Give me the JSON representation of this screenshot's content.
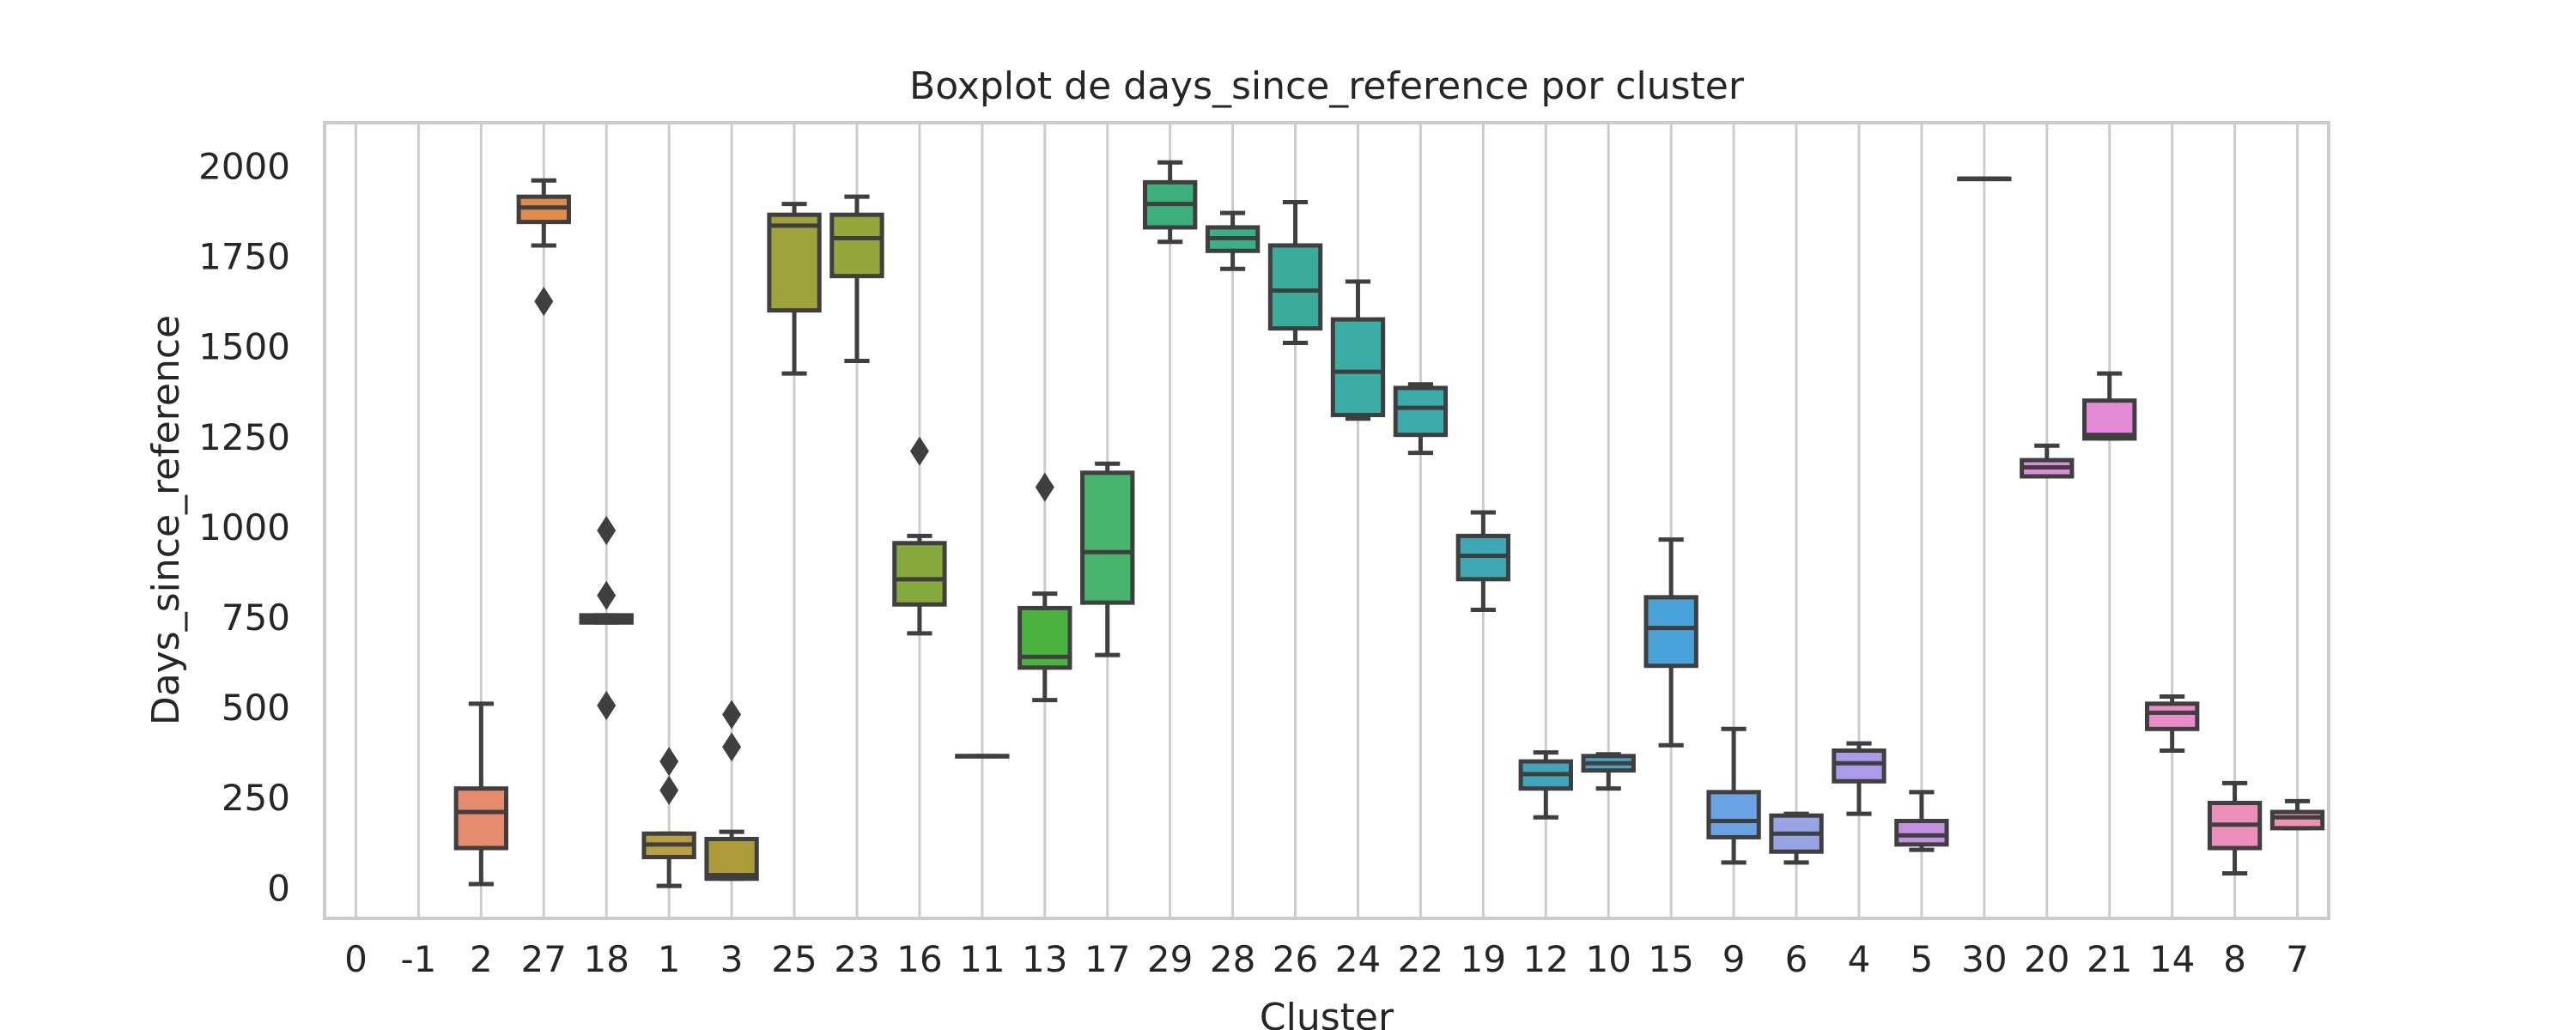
{
  "chart_data": {
    "type": "box",
    "title": "Boxplot de days_since_reference por cluster",
    "xlabel": "Cluster",
    "ylabel": "Days_since_reference",
    "ylim": [
      -85,
      2120
    ],
    "yticks": [
      0,
      250,
      500,
      750,
      1000,
      1250,
      1500,
      1750,
      2000
    ],
    "grid": "vertical",
    "categories": [
      "0",
      "-1",
      "2",
      "27",
      "18",
      "1",
      "3",
      "25",
      "23",
      "16",
      "11",
      "13",
      "17",
      "29",
      "28",
      "26",
      "24",
      "22",
      "19",
      "12",
      "10",
      "15",
      "9",
      "6",
      "4",
      "5",
      "30",
      "20",
      "21",
      "14",
      "8",
      "7"
    ],
    "boxes": [
      null,
      null,
      {
        "min": 10,
        "q1": 110,
        "median": 210,
        "q3": 275,
        "max": 510,
        "outliers": [],
        "color": "#e48c6d"
      },
      {
        "min": 1780,
        "q1": 1845,
        "median": 1885,
        "q3": 1915,
        "max": 1960,
        "outliers": [
          1625
        ],
        "color": "#e18c4c"
      },
      {
        "min": 735,
        "q1": 735,
        "median": 745,
        "q3": 755,
        "max": 755,
        "outliers": [
          990,
          810,
          505
        ],
        "color": "#c79a4f"
      },
      {
        "min": 5,
        "q1": 85,
        "median": 120,
        "q3": 150,
        "max": 150,
        "outliers": [
          350,
          270
        ],
        "color": "#b9a044"
      },
      {
        "min": 25,
        "q1": 25,
        "median": 35,
        "q3": 135,
        "max": 155,
        "outliers": [
          480,
          390
        ],
        "color": "#ad9d3a"
      },
      {
        "min": 1425,
        "q1": 1600,
        "median": 1835,
        "q3": 1865,
        "max": 1895,
        "outliers": [],
        "color": "#a0a23c"
      },
      {
        "min": 1460,
        "q1": 1695,
        "median": 1800,
        "q3": 1865,
        "max": 1915,
        "outliers": [],
        "color": "#96a53b"
      },
      {
        "min": 705,
        "q1": 785,
        "median": 855,
        "q3": 955,
        "max": 975,
        "outliers": [
          1210
        ],
        "color": "#86a93b"
      },
      {
        "min": 365,
        "q1": 365,
        "median": 365,
        "q3": 365,
        "max": 365,
        "outliers": [],
        "color": "#66b03b"
      },
      {
        "min": 520,
        "q1": 610,
        "median": 640,
        "q3": 775,
        "max": 815,
        "outliers": [
          1110
        ],
        "color": "#4ab23f"
      },
      {
        "min": 645,
        "q1": 790,
        "median": 930,
        "q3": 1150,
        "max": 1175,
        "outliers": [],
        "color": "#48b36b"
      },
      {
        "min": 1790,
        "q1": 1830,
        "median": 1895,
        "q3": 1955,
        "max": 2010,
        "outliers": [],
        "color": "#3cb07b"
      },
      {
        "min": 1715,
        "q1": 1765,
        "median": 1800,
        "q3": 1830,
        "max": 1870,
        "outliers": [],
        "color": "#3ab08a"
      },
      {
        "min": 1510,
        "q1": 1550,
        "median": 1655,
        "q3": 1780,
        "max": 1900,
        "outliers": [],
        "color": "#3aad9a"
      },
      {
        "min": 1300,
        "q1": 1310,
        "median": 1430,
        "q3": 1575,
        "max": 1680,
        "outliers": [],
        "color": "#3bada5"
      },
      {
        "min": 1205,
        "q1": 1255,
        "median": 1330,
        "q3": 1385,
        "max": 1395,
        "outliers": [],
        "color": "#3cabab"
      },
      {
        "min": 770,
        "q1": 855,
        "median": 920,
        "q3": 975,
        "max": 1040,
        "outliers": [],
        "color": "#3ea7b4"
      },
      {
        "min": 195,
        "q1": 275,
        "median": 315,
        "q3": 350,
        "max": 375,
        "outliers": [],
        "color": "#40a6bd"
      },
      {
        "min": 275,
        "q1": 325,
        "median": 345,
        "q3": 365,
        "max": 370,
        "outliers": [],
        "color": "#45a5c5"
      },
      {
        "min": 395,
        "q1": 615,
        "median": 720,
        "q3": 805,
        "max": 965,
        "outliers": [],
        "color": "#4aa3d8"
      },
      {
        "min": 70,
        "q1": 140,
        "median": 185,
        "q3": 265,
        "max": 440,
        "outliers": [],
        "color": "#6aa3e5"
      },
      {
        "min": 70,
        "q1": 100,
        "median": 150,
        "q3": 200,
        "max": 205,
        "outliers": [],
        "color": "#97a5e5"
      },
      {
        "min": 205,
        "q1": 295,
        "median": 345,
        "q3": 380,
        "max": 400,
        "outliers": [],
        "color": "#ab9be8"
      },
      {
        "min": 105,
        "q1": 120,
        "median": 145,
        "q3": 185,
        "max": 265,
        "outliers": [],
        "color": "#c491e2"
      },
      {
        "min": 1965,
        "q1": 1965,
        "median": 1965,
        "q3": 1965,
        "max": 1965,
        "outliers": [],
        "color": "#d290e0"
      },
      {
        "min": 1140,
        "q1": 1140,
        "median": 1165,
        "q3": 1185,
        "max": 1225,
        "outliers": [],
        "color": "#de8ddc"
      },
      {
        "min": 1245,
        "q1": 1245,
        "median": 1255,
        "q3": 1350,
        "max": 1425,
        "outliers": [],
        "color": "#e58ad8"
      },
      {
        "min": 380,
        "q1": 440,
        "median": 485,
        "q3": 510,
        "max": 530,
        "outliers": [],
        "color": "#eb8cc8"
      },
      {
        "min": 40,
        "q1": 110,
        "median": 175,
        "q3": 235,
        "max": 290,
        "outliers": [],
        "color": "#ec8fba"
      },
      {
        "min": 165,
        "q1": 165,
        "median": 195,
        "q3": 210,
        "max": 240,
        "outliers": [],
        "color": "#ee92b0"
      }
    ]
  }
}
